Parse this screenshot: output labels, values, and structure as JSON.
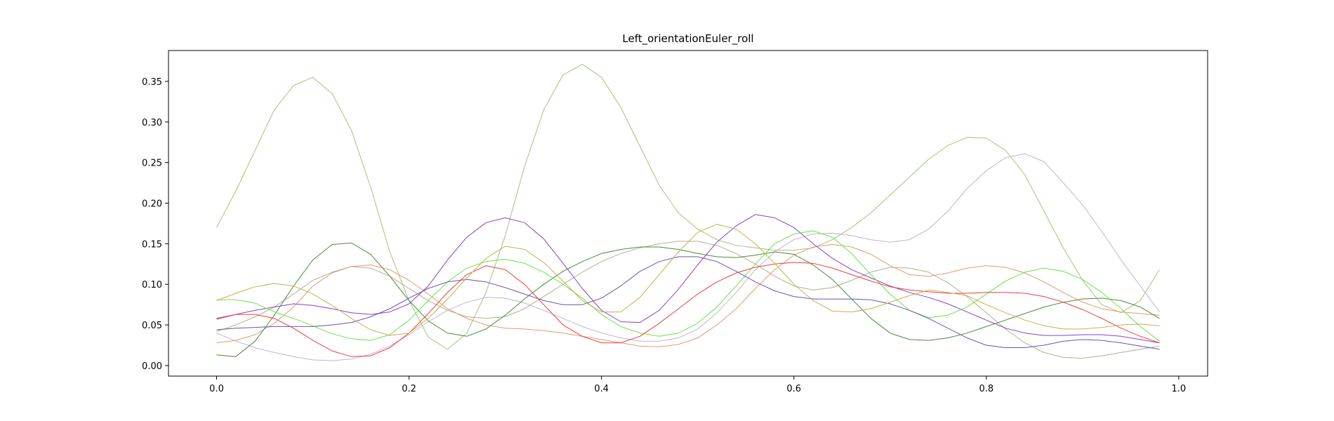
{
  "chart_data": {
    "type": "line",
    "title": "Left_orientationEuler_roll",
    "xlabel": "",
    "ylabel": "",
    "xlim": [
      -0.05,
      1.03
    ],
    "ylim": [
      -0.013,
      0.388
    ],
    "xticks": [
      "0.0",
      "0.2",
      "0.4",
      "0.6",
      "0.8",
      "1.0"
    ],
    "yticks": [
      "0.00",
      "0.05",
      "0.10",
      "0.15",
      "0.20",
      "0.25",
      "0.30",
      "0.35"
    ],
    "grid": false,
    "x": [
      0.0,
      0.02,
      0.04,
      0.06,
      0.08,
      0.1,
      0.12,
      0.14,
      0.16,
      0.18,
      0.2,
      0.22,
      0.24,
      0.26,
      0.28,
      0.3,
      0.32,
      0.34,
      0.36,
      0.38,
      0.4,
      0.42,
      0.44,
      0.46,
      0.48,
      0.5,
      0.52,
      0.54,
      0.56,
      0.58,
      0.6,
      0.62,
      0.64,
      0.66,
      0.68,
      0.7,
      0.72,
      0.74,
      0.76,
      0.78,
      0.8,
      0.82,
      0.84,
      0.86,
      0.88,
      0.9,
      0.92,
      0.94,
      0.96,
      0.98
    ],
    "series": [
      {
        "color": "#a4c27a",
        "values": [
          0.17,
          0.215,
          0.265,
          0.315,
          0.345,
          0.355,
          0.335,
          0.29,
          0.22,
          0.14,
          0.08,
          0.035,
          0.02,
          0.04,
          0.09,
          0.16,
          0.245,
          0.315,
          0.358,
          0.371,
          0.355,
          0.318,
          0.27,
          0.222,
          0.188,
          0.168,
          0.155,
          0.148,
          0.145,
          0.142,
          0.142,
          0.145,
          0.155,
          0.17,
          0.188,
          0.21,
          0.232,
          0.254,
          0.271,
          0.281,
          0.28,
          0.265,
          0.235,
          0.19,
          0.145,
          0.105,
          0.075,
          0.065,
          0.08,
          0.118
        ]
      },
      {
        "color": "#c3b2d1",
        "values": [
          0.04,
          0.03,
          0.022,
          0.016,
          0.011,
          0.007,
          0.006,
          0.008,
          0.014,
          0.024,
          0.038,
          0.054,
          0.068,
          0.078,
          0.084,
          0.083,
          0.077,
          0.068,
          0.058,
          0.048,
          0.04,
          0.034,
          0.03,
          0.03,
          0.034,
          0.045,
          0.065,
          0.09,
          0.118,
          0.14,
          0.155,
          0.162,
          0.163,
          0.16,
          0.155,
          0.152,
          0.155,
          0.168,
          0.19,
          0.218,
          0.24,
          0.256,
          0.261,
          0.251,
          0.225,
          0.198,
          0.165,
          0.13,
          0.098,
          0.066
        ]
      },
      {
        "color": "#b4af8c",
        "values": [
          0.042,
          0.05,
          0.06,
          0.072,
          0.088,
          0.105,
          0.115,
          0.122,
          0.12,
          0.11,
          0.095,
          0.08,
          0.068,
          0.06,
          0.058,
          0.06,
          0.07,
          0.085,
          0.1,
          0.115,
          0.128,
          0.138,
          0.145,
          0.15,
          0.153,
          0.153,
          0.148,
          0.138,
          0.125,
          0.11,
          0.098,
          0.093,
          0.096,
          0.105,
          0.115,
          0.121,
          0.12,
          0.115,
          0.102,
          0.085,
          0.065,
          0.045,
          0.028,
          0.016,
          0.01,
          0.009,
          0.012,
          0.016,
          0.02,
          0.024
        ]
      },
      {
        "color": "#e39a74",
        "values": [
          0.028,
          0.031,
          0.038,
          0.052,
          0.072,
          0.098,
          0.114,
          0.122,
          0.124,
          0.118,
          0.105,
          0.088,
          0.07,
          0.058,
          0.05,
          0.046,
          0.045,
          0.043,
          0.04,
          0.036,
          0.032,
          0.028,
          0.024,
          0.023,
          0.026,
          0.034,
          0.05,
          0.07,
          0.095,
          0.118,
          0.136,
          0.146,
          0.149,
          0.146,
          0.137,
          0.123,
          0.112,
          0.11,
          0.114,
          0.12,
          0.123,
          0.121,
          0.114,
          0.103,
          0.09,
          0.078,
          0.07,
          0.066,
          0.064,
          0.062
        ]
      },
      {
        "color": "#4a8a3c",
        "values": [
          0.013,
          0.011,
          0.03,
          0.062,
          0.098,
          0.13,
          0.149,
          0.151,
          0.137,
          0.11,
          0.08,
          0.055,
          0.04,
          0.036,
          0.045,
          0.062,
          0.082,
          0.1,
          0.116,
          0.128,
          0.138,
          0.143,
          0.146,
          0.146,
          0.143,
          0.138,
          0.134,
          0.133,
          0.136,
          0.14,
          0.137,
          0.124,
          0.106,
          0.082,
          0.058,
          0.04,
          0.032,
          0.031,
          0.034,
          0.04,
          0.048,
          0.056,
          0.064,
          0.072,
          0.078,
          0.082,
          0.083,
          0.08,
          0.072,
          0.058
        ]
      },
      {
        "color": "#8a40c8",
        "values": [
          0.058,
          0.063,
          0.068,
          0.072,
          0.076,
          0.074,
          0.07,
          0.065,
          0.063,
          0.066,
          0.076,
          0.098,
          0.13,
          0.158,
          0.176,
          0.182,
          0.176,
          0.156,
          0.126,
          0.095,
          0.068,
          0.054,
          0.053,
          0.068,
          0.094,
          0.124,
          0.152,
          0.172,
          0.186,
          0.182,
          0.17,
          0.15,
          0.132,
          0.118,
          0.108,
          0.098,
          0.09,
          0.084,
          0.076,
          0.066,
          0.056,
          0.046,
          0.04,
          0.037,
          0.037,
          0.038,
          0.038,
          0.036,
          0.032,
          0.028
        ]
      },
      {
        "color": "#64e64a",
        "values": [
          0.081,
          0.081,
          0.077,
          0.066,
          0.058,
          0.049,
          0.039,
          0.033,
          0.031,
          0.038,
          0.056,
          0.08,
          0.103,
          0.12,
          0.128,
          0.131,
          0.126,
          0.115,
          0.1,
          0.083,
          0.063,
          0.048,
          0.04,
          0.036,
          0.04,
          0.052,
          0.072,
          0.098,
          0.125,
          0.15,
          0.162,
          0.166,
          0.158,
          0.138,
          0.112,
          0.088,
          0.068,
          0.059,
          0.062,
          0.072,
          0.088,
          0.104,
          0.115,
          0.12,
          0.116,
          0.106,
          0.09,
          0.07,
          0.048,
          0.03
        ]
      },
      {
        "color": "#6a55a8",
        "values": [
          0.044,
          0.046,
          0.047,
          0.048,
          0.048,
          0.048,
          0.05,
          0.053,
          0.06,
          0.07,
          0.083,
          0.095,
          0.103,
          0.106,
          0.103,
          0.096,
          0.088,
          0.08,
          0.075,
          0.075,
          0.083,
          0.098,
          0.116,
          0.128,
          0.134,
          0.134,
          0.128,
          0.116,
          0.103,
          0.092,
          0.085,
          0.082,
          0.082,
          0.082,
          0.081,
          0.076,
          0.068,
          0.058,
          0.046,
          0.034,
          0.025,
          0.022,
          0.022,
          0.025,
          0.03,
          0.032,
          0.031,
          0.028,
          0.024,
          0.02
        ]
      },
      {
        "color": "#e84040",
        "values": [
          0.057,
          0.063,
          0.063,
          0.058,
          0.046,
          0.031,
          0.018,
          0.011,
          0.012,
          0.022,
          0.04,
          0.064,
          0.09,
          0.112,
          0.123,
          0.118,
          0.1,
          0.075,
          0.05,
          0.036,
          0.028,
          0.028,
          0.036,
          0.052,
          0.07,
          0.088,
          0.103,
          0.114,
          0.121,
          0.125,
          0.127,
          0.126,
          0.12,
          0.112,
          0.104,
          0.097,
          0.093,
          0.091,
          0.089,
          0.089,
          0.09,
          0.09,
          0.089,
          0.085,
          0.078,
          0.069,
          0.058,
          0.046,
          0.036,
          0.028
        ]
      },
      {
        "color": "#c8b04a",
        "values": [
          0.08,
          0.089,
          0.097,
          0.101,
          0.098,
          0.088,
          0.074,
          0.058,
          0.044,
          0.037,
          0.04,
          0.058,
          0.082,
          0.108,
          0.132,
          0.147,
          0.143,
          0.127,
          0.104,
          0.08,
          0.066,
          0.066,
          0.084,
          0.112,
          0.14,
          0.164,
          0.174,
          0.168,
          0.15,
          0.126,
          0.1,
          0.08,
          0.067,
          0.066,
          0.07,
          0.078,
          0.086,
          0.093,
          0.09,
          0.086,
          0.075,
          0.065,
          0.056,
          0.049,
          0.045,
          0.045,
          0.047,
          0.05,
          0.051,
          0.049
        ]
      }
    ]
  }
}
